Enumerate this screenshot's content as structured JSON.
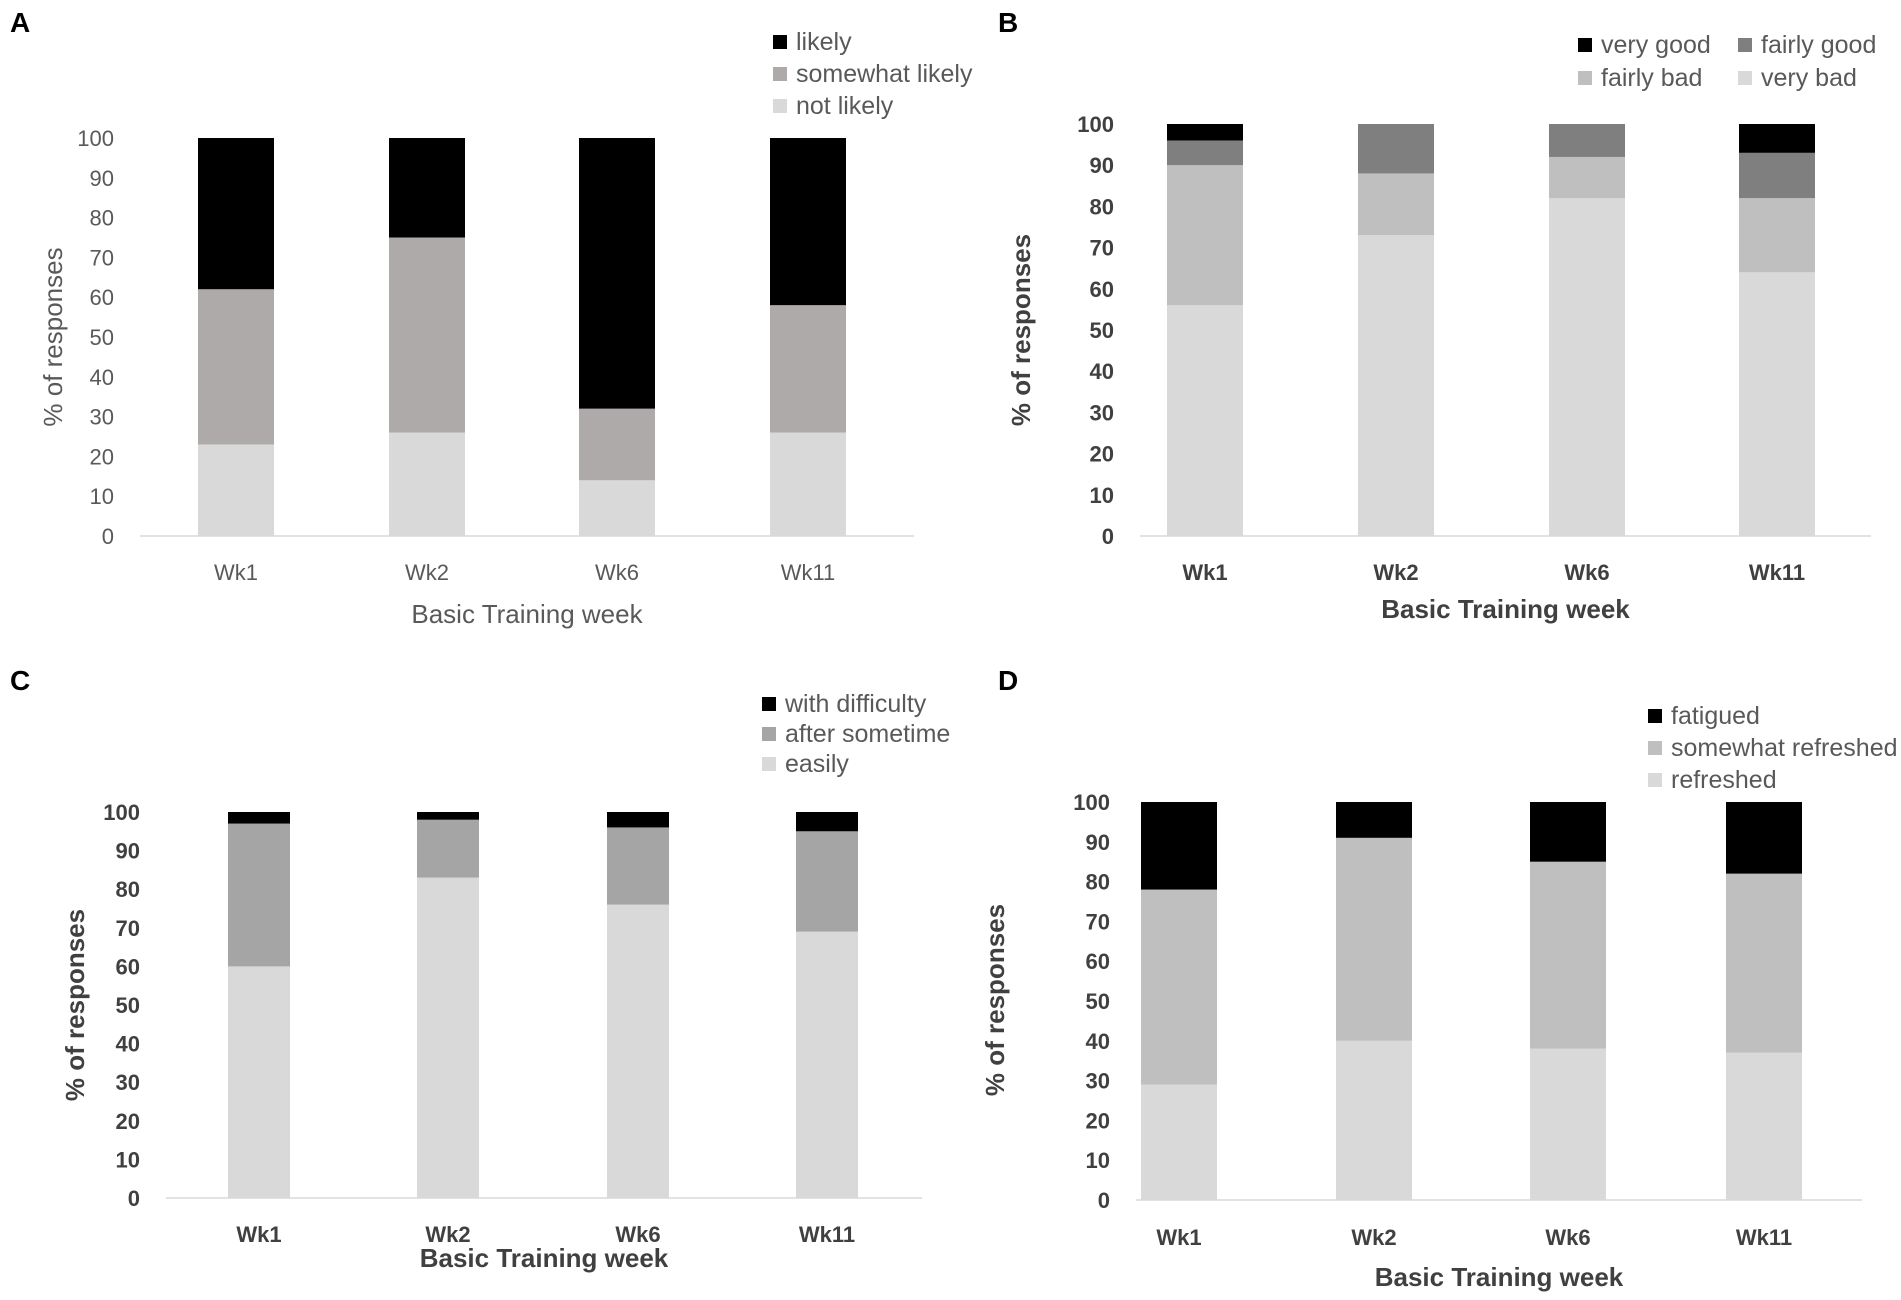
{
  "chart_data": [
    {
      "panel": "A",
      "type": "bar",
      "stacked": true,
      "categories": [
        "Wk1",
        "Wk2",
        "Wk6",
        "Wk11"
      ],
      "series": [
        {
          "name": "not likely",
          "color": "#d9d9d9",
          "values": [
            23,
            26,
            14,
            26
          ]
        },
        {
          "name": "somewhat likely",
          "color": "#aeaaaa",
          "values": [
            39,
            49,
            18,
            32
          ]
        },
        {
          "name": "likely",
          "color": "#000000",
          "values": [
            38,
            25,
            68,
            42
          ]
        }
      ],
      "legend_order": [
        "likely",
        "somewhat likely",
        "not likely"
      ],
      "xlabel": "Basic Training week",
      "ylabel": "% of responses",
      "ylim": [
        0,
        100
      ],
      "yticks": [
        0,
        10,
        20,
        30,
        40,
        50,
        60,
        70,
        80,
        90,
        100
      ],
      "legend": "top-right"
    },
    {
      "panel": "B",
      "type": "bar",
      "stacked": true,
      "categories": [
        "Wk1",
        "Wk2",
        "Wk6",
        "Wk11"
      ],
      "series": [
        {
          "name": "very bad",
          "color": "#d9d9d9",
          "values": [
            56,
            73,
            82,
            64
          ]
        },
        {
          "name": "fairly bad",
          "color": "#bfbfbf",
          "values": [
            34,
            15,
            10,
            18
          ]
        },
        {
          "name": "fairly good",
          "color": "#7f7f7f",
          "values": [
            6,
            12,
            8,
            11
          ]
        },
        {
          "name": "very good",
          "color": "#000000",
          "values": [
            4,
            0,
            0,
            7
          ]
        }
      ],
      "legend_order": [
        "very good",
        "fairly good",
        "fairly bad",
        "very bad"
      ],
      "xlabel": "Basic Training week",
      "ylabel": "% of responses",
      "ylim": [
        0,
        100
      ],
      "yticks": [
        0,
        10,
        20,
        30,
        40,
        50,
        60,
        70,
        80,
        90,
        100
      ],
      "legend": "top-right"
    },
    {
      "panel": "C",
      "type": "bar",
      "stacked": true,
      "categories": [
        "Wk1",
        "Wk2",
        "Wk6",
        "Wk11"
      ],
      "series": [
        {
          "name": "easily",
          "color": "#d9d9d9",
          "values": [
            60,
            83,
            76,
            69
          ]
        },
        {
          "name": "after sometime",
          "color": "#a5a5a5",
          "values": [
            37,
            15,
            20,
            26
          ]
        },
        {
          "name": "with difficulty",
          "color": "#000000",
          "values": [
            3,
            2,
            4,
            5
          ]
        }
      ],
      "legend_order": [
        "with difficulty",
        "after sometime",
        "easily"
      ],
      "xlabel": "Basic Training week",
      "ylabel": "% of responses",
      "ylim": [
        0,
        100
      ],
      "yticks": [
        0,
        10,
        20,
        30,
        40,
        50,
        60,
        70,
        80,
        90,
        100
      ],
      "legend": "top-right"
    },
    {
      "panel": "D",
      "type": "bar",
      "stacked": true,
      "categories": [
        "Wk1",
        "Wk2",
        "Wk6",
        "Wk11"
      ],
      "series": [
        {
          "name": "refreshed",
          "color": "#d9d9d9",
          "values": [
            29,
            40,
            38,
            37
          ]
        },
        {
          "name": "somewhat refreshed",
          "color": "#bfbfbf",
          "values": [
            49,
            51,
            47,
            45
          ]
        },
        {
          "name": "fatigued",
          "color": "#000000",
          "values": [
            22,
            9,
            15,
            18
          ]
        }
      ],
      "legend_order": [
        "fatigued",
        "somewhat refreshed",
        "refreshed"
      ],
      "xlabel": "Basic Training week",
      "ylabel": "% of responses",
      "ylim": [
        0,
        100
      ],
      "yticks": [
        0,
        10,
        20,
        30,
        40,
        50,
        60,
        70,
        80,
        90,
        100
      ],
      "legend": "top-right"
    }
  ]
}
